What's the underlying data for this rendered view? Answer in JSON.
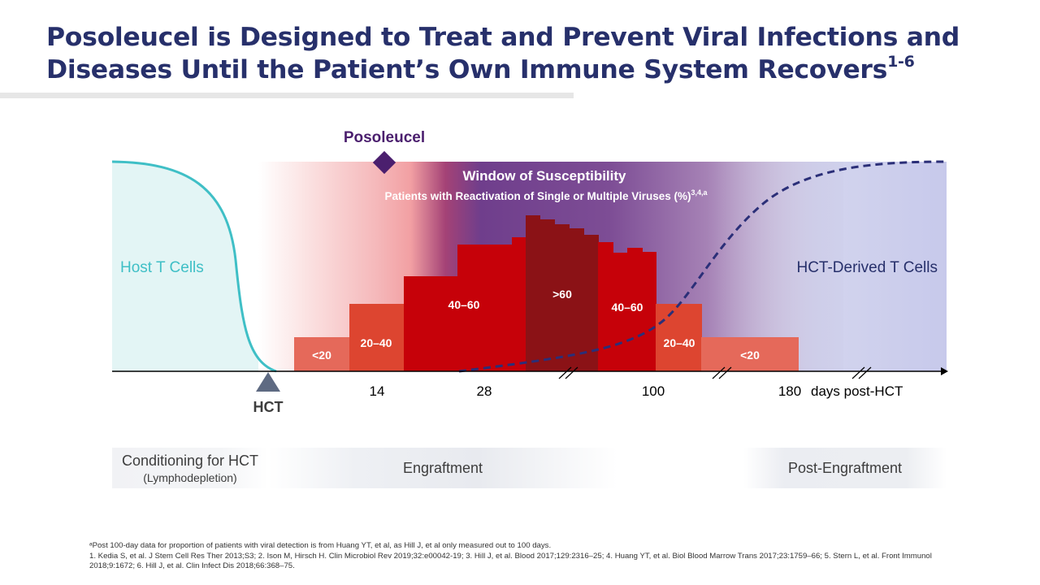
{
  "slide": {
    "title_line1": "Posoleucel is Designed to Treat and Prevent Viral Infections and",
    "title_line2": "Diseases Until the Patient’s Own Immune System Recovers",
    "title_superscript": "1-6"
  },
  "diagram": {
    "posoleucel_label": "Posoleucel",
    "window_title": "Window of Susceptibility",
    "window_subtitle": "Patients with Reactivation of Single or Multiple Viruses (%)",
    "window_subtitle_superscript": "3,4,a",
    "host_label": "Host T Cells",
    "derived_label": "HCT-Derived T Cells",
    "hct_label": "HCT",
    "axis_ticks": [
      "14",
      "28",
      "100",
      "180"
    ],
    "axis_unit": "days post-HCT",
    "reactivation_bands": [
      {
        "label": "<20",
        "range": "<20"
      },
      {
        "label": "20–40",
        "range": "20-40"
      },
      {
        "label": "40–60",
        "range": "40-60"
      },
      {
        "label": ">60",
        "range": ">60"
      },
      {
        "label": "40–60",
        "range": "40-60"
      },
      {
        "label": "20–40",
        "range": "20-40"
      },
      {
        "label": "<20",
        "range": "<20"
      }
    ],
    "colors": {
      "host_curve": "#3fbfc6",
      "derived_curve": "#2b2f78",
      "posoleucel": "#4b1f6e",
      "band_low": "#e5695a",
      "band_mid": "#dd4530",
      "band_high": "#c60109",
      "band_peak": "#8b1216",
      "title": "#27306b"
    }
  },
  "phases": {
    "conditioning_main": "Conditioning for HCT",
    "conditioning_sub": "(Lymphodepletion)",
    "engraftment": "Engraftment",
    "post_engraftment": "Post-Engraftment"
  },
  "footnotes": {
    "note_a": "ᵃPost 100-day data for proportion of patients with viral detection is from Huang YT, et al, as Hill J, et al only measured out to 100 days.",
    "references": "1. Kedia S, et al. J Stem Cell Res Ther 2013;S3; 2. Ison M, Hirsch H. Clin Microbiol Rev 2019;32:e00042-19; 3. Hill J, et al. Blood 2017;129:2316–25; 4. Huang YT, et al. Biol Blood Marrow Trans 2017;23:1759–66; 5. Stern L, et al. Front Immunol 2018;9:1672; 6. Hill J, et al. Clin Infect Dis 2018;66:368–75."
  }
}
